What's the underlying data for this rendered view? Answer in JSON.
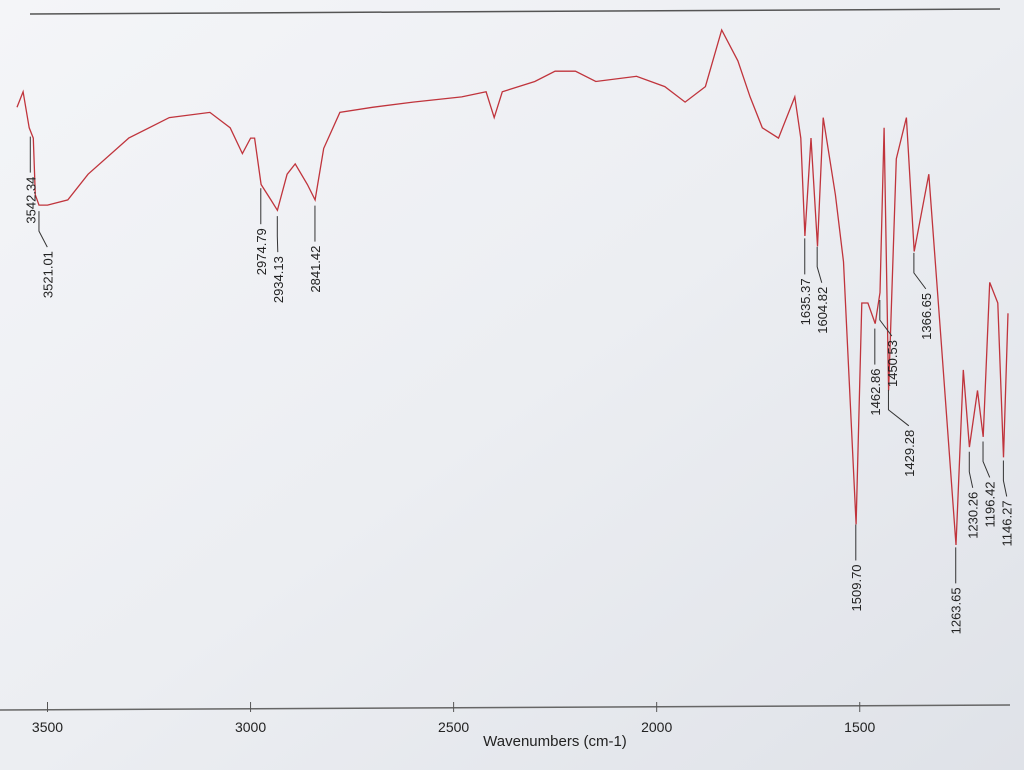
{
  "chart_data": {
    "type": "line",
    "x_label": "Wavenumbers (cm-1)",
    "x": [
      3575,
      3560,
      3545,
      3535,
      3530,
      3521,
      3500,
      3450,
      3400,
      3300,
      3200,
      3100,
      3050,
      3020,
      3000,
      2990,
      2974,
      2950,
      2934,
      2910,
      2890,
      2860,
      2841,
      2820,
      2780,
      2700,
      2600,
      2480,
      2420,
      2400,
      2380,
      2300,
      2250,
      2200,
      2150,
      2050,
      1980,
      1930,
      1880,
      1840,
      1800,
      1770,
      1740,
      1700,
      1660,
      1645,
      1635,
      1620,
      1604,
      1590,
      1560,
      1540,
      1509,
      1495,
      1480,
      1462,
      1450,
      1440,
      1429,
      1410,
      1385,
      1366,
      1330,
      1300,
      1263,
      1245,
      1230,
      1210,
      1196,
      1180,
      1160,
      1146,
      1135
    ],
    "values": [
      85,
      88,
      81,
      79,
      68,
      66,
      66,
      67,
      72,
      79,
      83,
      84,
      81,
      76,
      79,
      79,
      70,
      67,
      65,
      72,
      74,
      70,
      67,
      77,
      84,
      85,
      86,
      87,
      88,
      83,
      88,
      90,
      92,
      92,
      90,
      91,
      89,
      86,
      89,
      100,
      94,
      87,
      81,
      79,
      87,
      79,
      60,
      79,
      58,
      83,
      68,
      55,
      4,
      47,
      47,
      43,
      49,
      81,
      30,
      75,
      83,
      57,
      72,
      40,
      0,
      34,
      19,
      30,
      21,
      51,
      47,
      17,
      45
    ],
    "color": "#c0343c",
    "xlim": [
      3580,
      1130
    ],
    "ylim": [
      0,
      100
    ],
    "xticks": [
      3500,
      3000,
      2500,
      2000,
      1500
    ],
    "peaks": [
      {
        "value": 3542.34,
        "label": "3542.34"
      },
      {
        "value": 3521.01,
        "label": "3521.01"
      },
      {
        "value": 2974.79,
        "label": "2974.79"
      },
      {
        "value": 2934.13,
        "label": "2934.13"
      },
      {
        "value": 2841.42,
        "label": "2841.42"
      },
      {
        "value": 1635.37,
        "label": "1635.37"
      },
      {
        "value": 1604.82,
        "label": "1604.82"
      },
      {
        "value": 1509.7,
        "label": "1509.70"
      },
      {
        "value": 1462.86,
        "label": "1462.86"
      },
      {
        "value": 1450.53,
        "label": "1450.53"
      },
      {
        "value": 1429.28,
        "label": "1429.28"
      },
      {
        "value": 1366.65,
        "label": "1366.65"
      },
      {
        "value": 1263.65,
        "label": "1263.65"
      },
      {
        "value": 1230.26,
        "label": "1230.26"
      },
      {
        "value": 1196.42,
        "label": "1196.42"
      },
      {
        "value": 1146.27,
        "label": "1146.27"
      }
    ]
  }
}
